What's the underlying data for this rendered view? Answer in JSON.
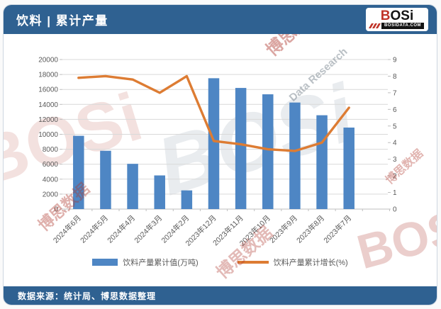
{
  "theme": {
    "brand_blue": "#2f6191",
    "bar_color": "#4e86c4",
    "line_color": "#dd7c33",
    "grid_color": "#d9d9d9",
    "axis_color": "#bfbfbf",
    "tick_text_color": "#595959"
  },
  "header": {
    "title": "饮料 | 累计产量",
    "logo": {
      "b": "B",
      "osi": "OSi",
      "domain": "BOSIDATA.COM"
    }
  },
  "footer": {
    "source": "数据来源：统计局、博思数据整理"
  },
  "watermarks": [
    {
      "text": "BOSi",
      "class": "wm-a"
    },
    {
      "text": "BOSi",
      "class": "wm-b"
    },
    {
      "text": "BOSi",
      "class": "wm-c top"
    },
    {
      "text": "博思数据",
      "class": "wm-d top"
    },
    {
      "text": "Data Research",
      "class": "wm-e top"
    },
    {
      "text": "博思数据",
      "class": "wm-f top"
    },
    {
      "text": "博思数据",
      "class": "wm-g top"
    },
    {
      "text": "博思数据",
      "class": "wm-h top"
    },
    {
      "text": "博思数据",
      "class": "wm-i top"
    }
  ],
  "chart_data": {
    "type": "bar",
    "subtype": "bar+line combo, dual axis",
    "title": "饮料 | 累计产量",
    "categories": [
      "2024年6月",
      "2024年5月",
      "2024年4月",
      "2024年3月",
      "2024年2月",
      "2023年12月",
      "2023年11月",
      "2023年10月",
      "2023年9月",
      "2023年8月",
      "2023年7月"
    ],
    "series": [
      {
        "name": "饮料产量累计值(万吨)",
        "type": "bar",
        "axis": "left",
        "color": "#4e86c4",
        "values": [
          9800,
          7800,
          6050,
          4500,
          2500,
          17500,
          16200,
          15350,
          14250,
          12550,
          10900
        ]
      },
      {
        "name": "饮料产量累计增长(%)",
        "type": "line",
        "axis": "right",
        "color": "#dd7c33",
        "values": [
          7.9,
          8.0,
          7.8,
          7.0,
          8.0,
          4.1,
          3.9,
          3.6,
          3.5,
          4.0,
          6.1
        ]
      }
    ],
    "left_axis": {
      "min": 0,
      "max": 20000,
      "step": 2000
    },
    "right_axis": {
      "min": 0,
      "max": 9,
      "step": 1
    },
    "grid": true,
    "legend_position": "bottom"
  }
}
